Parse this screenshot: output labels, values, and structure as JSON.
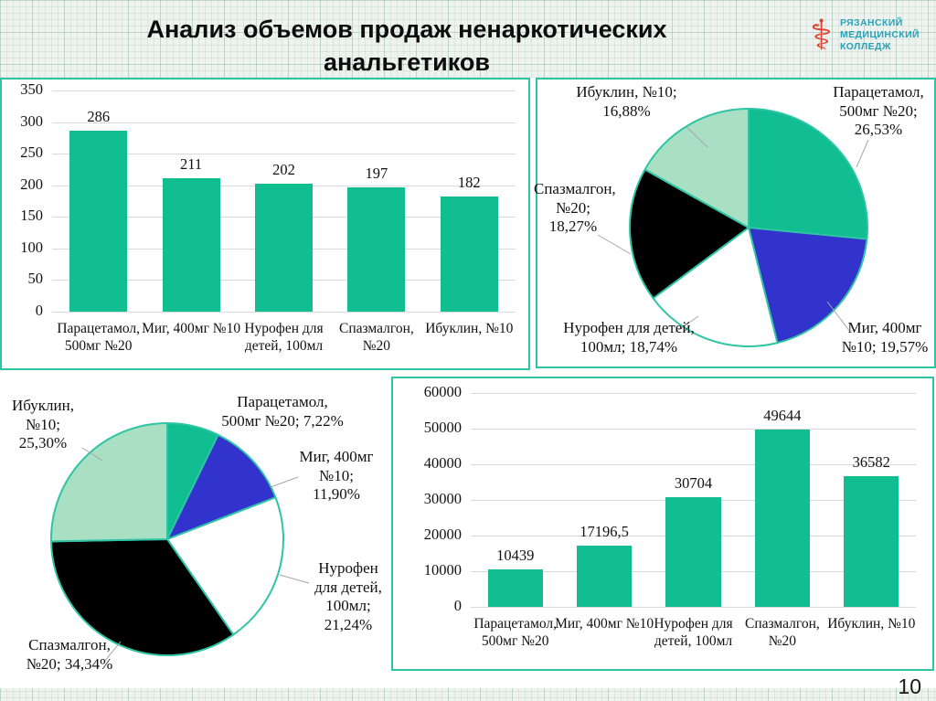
{
  "slide": {
    "title_line1": "Анализ объемов продаж ненаркотических",
    "title_line2": "анальгетиков",
    "page_number": "10"
  },
  "logo": {
    "icon": "bowl-of-hygieia-icon",
    "lines": [
      "РЯЗАНСКИЙ",
      "МЕДИЦИНСКИЙ",
      "КОЛЛЕДЖ"
    ]
  },
  "colors": {
    "teal": "#10be92",
    "mint": "#a9dfc3",
    "blue": "#3232cc",
    "black": "#000000",
    "white": "#ffffff",
    "panel_border": "#2ec4a4",
    "grid_line": "#d9d9d9",
    "leader_line": "#a6a6a6"
  },
  "chart_data": [
    {
      "id": "bar-packs",
      "type": "bar",
      "position": "top-left",
      "title": "",
      "xlabel": "",
      "ylabel": "",
      "grid": true,
      "categories": [
        "Парацетамол, 500мг №20",
        "Миг, 400мг №10",
        "Нурофен для детей,  100мл",
        "Спазмалгон, №20",
        "Ибуклин, №10"
      ],
      "values": [
        286,
        211,
        202,
        197,
        182
      ],
      "value_labels": [
        "286",
        "211",
        "202",
        "197",
        "182"
      ],
      "ylim": [
        0,
        350
      ],
      "ytick_labels": [
        "0",
        "50",
        "100",
        "150",
        "200",
        "250",
        "300",
        "350"
      ]
    },
    {
      "id": "pie-packs-share",
      "type": "pie",
      "position": "top-right",
      "title": "",
      "start_angle": "top, clockwise",
      "slices": [
        {
          "label": "Парацетамол, 500мг №20",
          "value": 26.53,
          "display": "Парацетамол,\n500мг №20;\n26,53%",
          "color": "#10be92"
        },
        {
          "label": "Миг, 400мг №10",
          "value": 19.57,
          "display": "Миг, 400мг\n№10; 19,57%",
          "color": "#3232cc"
        },
        {
          "label": "Нурофен для детей, 100мл",
          "value": 18.74,
          "display": "Нурофен для детей,\n100мл; 18,74%",
          "color": "#ffffff"
        },
        {
          "label": "Спазмалгон, №20",
          "value": 18.27,
          "display": "Спазмалгон,\n№20;\n18,27%",
          "color": "#000000"
        },
        {
          "label": "Ибуклин, №10",
          "value": 16.88,
          "display": "Ибуклин,  №10;\n16,88%",
          "color": "#a9dfc3"
        }
      ]
    },
    {
      "id": "pie-revenue-share",
      "type": "pie",
      "position": "bottom-left",
      "title": "",
      "start_angle": "top, clockwise",
      "slices": [
        {
          "label": "Парацетамол, 500мг №20",
          "value": 7.22,
          "display": "Парацетамол,\n500мг №20; 7,22%",
          "color": "#10be92"
        },
        {
          "label": "Миг, 400мг №10",
          "value": 11.9,
          "display": "Миг, 400мг\n№10;\n11,90%",
          "color": "#3232cc"
        },
        {
          "label": "Нурофен для детей, 100мл",
          "value": 21.24,
          "display": "Нурофен\nдля детей,\n100мл;\n21,24%",
          "color": "#ffffff"
        },
        {
          "label": "Спазмалгон, №20",
          "value": 34.34,
          "display": "Спазмалгон,\n№20; 34,34%",
          "color": "#000000"
        },
        {
          "label": "Ибуклин, №10",
          "value": 25.3,
          "display": "Ибуклин,\n№10;\n25,30%",
          "color": "#a9dfc3"
        }
      ]
    },
    {
      "id": "bar-revenue",
      "type": "bar",
      "position": "bottom-right",
      "title": "",
      "xlabel": "",
      "ylabel": "",
      "grid": true,
      "categories": [
        "Парацетамол, 500мг №20",
        "Миг, 400мг №10",
        "Нурофен для детей,  100мл",
        "Спазмалгон, №20",
        "Ибуклин, №10"
      ],
      "values": [
        10439,
        17196.5,
        30704,
        49644,
        36582
      ],
      "value_labels": [
        "10439",
        "17196,5",
        "30704",
        "49644",
        "36582"
      ],
      "ylim": [
        0,
        60000
      ],
      "ytick_labels": [
        "0",
        "10000",
        "20000",
        "30000",
        "40000",
        "50000",
        "60000"
      ]
    }
  ]
}
